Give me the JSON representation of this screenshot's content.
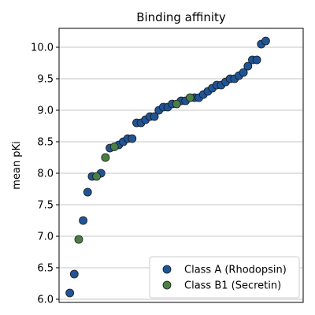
{
  "chart_data": {
    "type": "scatter",
    "title": "Binding affinity",
    "xlabel": "",
    "ylabel": "mean pKi",
    "ylim": [
      5.95,
      10.3
    ],
    "xlim": [
      0,
      52
    ],
    "y_ticks": [
      "6.0",
      "6.5",
      "7.0",
      "7.5",
      "8.0",
      "8.5",
      "9.0",
      "9.5",
      "10.0"
    ],
    "grid": "y",
    "legend_position": "lower-right",
    "colors": {
      "Class A (Rhodopsin)": "#1f5596",
      "Class B1 (Secretin)": "#4a7f44"
    },
    "series": [
      {
        "name": "Class A (Rhodopsin)",
        "points": [
          [
            1,
            6.1
          ],
          [
            2,
            6.4
          ],
          [
            4,
            7.25
          ],
          [
            5,
            7.7
          ],
          [
            6,
            7.95
          ],
          [
            8,
            8.0
          ],
          [
            10,
            8.4
          ],
          [
            12,
            8.45
          ],
          [
            13,
            8.5
          ],
          [
            14,
            8.55
          ],
          [
            15,
            8.55
          ],
          [
            16,
            8.8
          ],
          [
            17,
            8.8
          ],
          [
            18,
            8.85
          ],
          [
            19,
            8.9
          ],
          [
            20,
            8.9
          ],
          [
            21,
            9.0
          ],
          [
            22,
            9.05
          ],
          [
            23,
            9.05
          ],
          [
            24,
            9.1
          ],
          [
            26,
            9.15
          ],
          [
            27,
            9.15
          ],
          [
            29,
            9.2
          ],
          [
            30,
            9.2
          ],
          [
            31,
            9.25
          ],
          [
            32,
            9.3
          ],
          [
            33,
            9.35
          ],
          [
            34,
            9.4
          ],
          [
            35,
            9.4
          ],
          [
            36,
            9.45
          ],
          [
            37,
            9.5
          ],
          [
            38,
            9.5
          ],
          [
            39,
            9.55
          ],
          [
            40,
            9.6
          ],
          [
            41,
            9.7
          ],
          [
            42,
            9.8
          ],
          [
            43,
            9.8
          ],
          [
            44,
            10.05
          ],
          [
            45,
            10.1
          ]
        ]
      },
      {
        "name": "Class B1 (Secretin)",
        "points": [
          [
            3,
            6.95
          ],
          [
            7,
            7.95
          ],
          [
            9,
            8.25
          ],
          [
            11,
            8.42
          ],
          [
            25,
            9.1
          ],
          [
            28,
            9.2
          ]
        ]
      }
    ]
  }
}
